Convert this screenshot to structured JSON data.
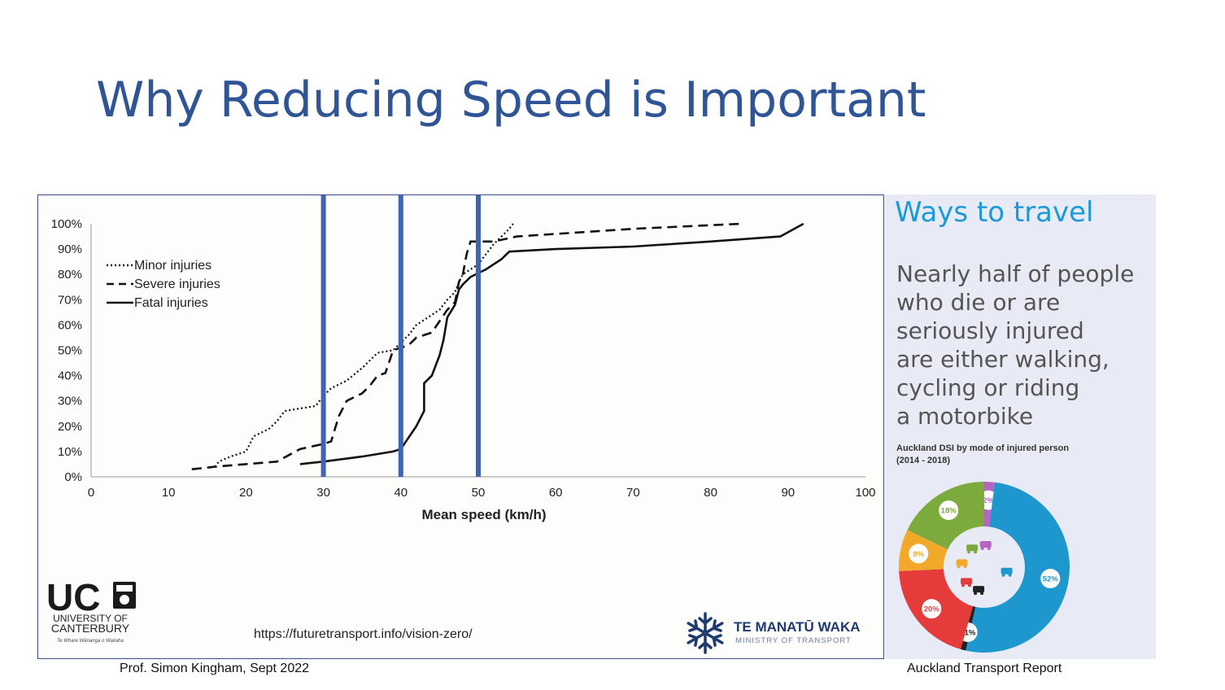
{
  "slide": {
    "title": "Why Reducing Speed is Important",
    "footer_left": "Prof. Simon Kingham, Sept 2022",
    "footer_right": "Auckland Transport Report",
    "url": "https://futuretransport.info/vision-zero/",
    "ministry_name": "TE MANATŪ WAKA",
    "ministry_sub": "MINISTRY OF TRANSPORT",
    "university_name": "UC",
    "university_line1": "UNIVERSITY OF",
    "university_line2": "CANTERBURY",
    "university_motto": "Te Whare Wānanga o Waitaha"
  },
  "side": {
    "title": "Ways to travel",
    "lines": [
      "Nearly half of people",
      "who die or are",
      "seriously injured",
      "are either walking,",
      "cycling or riding",
      "a motorbike"
    ],
    "donut_title_1": "Auckland DSI by mode of injured person",
    "donut_title_2": "(2014 - 2018)"
  },
  "colors": {
    "title": "#2f5597",
    "marker": "#3f63b7",
    "side_title": "#1a9ad6"
  },
  "donut": {
    "segments": [
      {
        "label": "2%",
        "value": 2,
        "color": "#b565c1",
        "icon": "truck-icon"
      },
      {
        "label": "52%",
        "value": 52,
        "color": "#1e97cf",
        "icon": "car-icon"
      },
      {
        "label": "<1%",
        "value": 1,
        "color": "#222222",
        "icon": "bus-icon"
      },
      {
        "label": "20%",
        "value": 20,
        "color": "#e63b3b",
        "icon": "motorbike-icon"
      },
      {
        "label": "8%",
        "value": 8,
        "color": "#f2a92a",
        "icon": "bicycle-icon"
      },
      {
        "label": "18%",
        "value": 18,
        "color": "#7daa3c",
        "icon": "pedestrian-icon"
      }
    ]
  },
  "chart_data": {
    "type": "line",
    "title": "",
    "xlabel": "Mean speed (km/h)",
    "ylabel": "",
    "xlim": [
      0,
      100
    ],
    "ylim": [
      0,
      100
    ],
    "x_ticks": [
      "0",
      "10",
      "20",
      "30",
      "40",
      "50",
      "60",
      "70",
      "80",
      "90",
      "100"
    ],
    "y_ticks": [
      "0%",
      "10%",
      "20%",
      "30%",
      "40%",
      "50%",
      "60%",
      "70%",
      "80%",
      "90%",
      "100%"
    ],
    "legend_position": "top-left",
    "grid": false,
    "reference_lines_x": [
      30,
      40,
      50
    ],
    "series": [
      {
        "name": "Minor injuries",
        "style": "dotted",
        "points": [
          [
            16,
            4
          ],
          [
            16.5,
            6
          ],
          [
            18,
            8
          ],
          [
            20,
            10
          ],
          [
            21,
            16
          ],
          [
            23,
            19
          ],
          [
            24,
            22
          ],
          [
            25,
            26
          ],
          [
            27,
            27
          ],
          [
            29,
            28
          ],
          [
            30,
            32
          ],
          [
            31,
            35
          ],
          [
            33,
            38
          ],
          [
            35,
            43
          ],
          [
            36,
            46
          ],
          [
            37,
            49
          ],
          [
            39,
            50
          ],
          [
            40,
            53
          ],
          [
            41,
            56
          ],
          [
            42,
            60
          ],
          [
            43,
            62
          ],
          [
            45,
            66
          ],
          [
            46,
            70
          ],
          [
            47,
            73
          ],
          [
            47.5,
            77
          ],
          [
            48,
            80
          ],
          [
            50,
            84
          ],
          [
            51,
            88
          ],
          [
            52,
            92
          ],
          [
            53,
            95
          ],
          [
            54,
            98
          ],
          [
            54.5,
            100
          ]
        ]
      },
      {
        "name": "Severe injuries",
        "style": "dashed",
        "points": [
          [
            13,
            3
          ],
          [
            16,
            4
          ],
          [
            20,
            5
          ],
          [
            24,
            6
          ],
          [
            27,
            11
          ],
          [
            30,
            13
          ],
          [
            31,
            14
          ],
          [
            32,
            24
          ],
          [
            33,
            30
          ],
          [
            35,
            33
          ],
          [
            36,
            36
          ],
          [
            37,
            40
          ],
          [
            38,
            41
          ],
          [
            39,
            50
          ],
          [
            40,
            51
          ],
          [
            41,
            52
          ],
          [
            42,
            55
          ],
          [
            44,
            57
          ],
          [
            46,
            66
          ],
          [
            47,
            69
          ],
          [
            47.5,
            77
          ],
          [
            48,
            80
          ],
          [
            48.5,
            88
          ],
          [
            49,
            93
          ],
          [
            52,
            93
          ],
          [
            55,
            95
          ],
          [
            70,
            98
          ],
          [
            84,
            100
          ]
        ]
      },
      {
        "name": "Fatal injuries",
        "style": "solid",
        "points": [
          [
            27,
            5
          ],
          [
            30,
            6
          ],
          [
            35,
            8
          ],
          [
            39,
            10
          ],
          [
            40,
            11
          ],
          [
            42,
            20
          ],
          [
            43,
            26
          ],
          [
            43,
            37
          ],
          [
            44,
            40
          ],
          [
            45,
            48
          ],
          [
            45.5,
            54
          ],
          [
            46,
            63
          ],
          [
            47,
            68
          ],
          [
            47.5,
            74
          ],
          [
            48,
            76
          ],
          [
            49,
            79
          ],
          [
            51,
            82
          ],
          [
            53,
            86
          ],
          [
            54,
            89
          ],
          [
            60,
            90
          ],
          [
            70,
            91
          ],
          [
            80,
            93
          ],
          [
            89,
            95
          ],
          [
            92,
            100
          ]
        ]
      }
    ]
  }
}
